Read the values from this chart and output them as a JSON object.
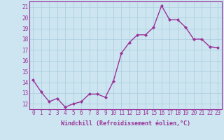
{
  "x": [
    0,
    1,
    2,
    3,
    4,
    5,
    6,
    7,
    8,
    9,
    10,
    11,
    12,
    13,
    14,
    15,
    16,
    17,
    18,
    19,
    20,
    21,
    22,
    23
  ],
  "y": [
    14.2,
    13.1,
    12.2,
    12.5,
    11.7,
    12.0,
    12.2,
    12.9,
    12.9,
    12.6,
    14.1,
    16.7,
    17.7,
    18.4,
    18.4,
    19.1,
    21.1,
    19.8,
    19.8,
    19.1,
    18.0,
    18.0,
    17.3,
    17.2
  ],
  "line_color": "#993399",
  "marker": "D",
  "marker_size": 2,
  "bg_color": "#cce5f0",
  "grid_color": "#aaccdd",
  "xlabel": "Windchill (Refroidissement éolien,°C)",
  "ylim": [
    11.5,
    21.5
  ],
  "xlim": [
    -0.5,
    23.5
  ],
  "yticks": [
    12,
    13,
    14,
    15,
    16,
    17,
    18,
    19,
    20,
    21
  ],
  "xticks": [
    0,
    1,
    2,
    3,
    4,
    5,
    6,
    7,
    8,
    9,
    10,
    11,
    12,
    13,
    14,
    15,
    16,
    17,
    18,
    19,
    20,
    21,
    22,
    23
  ],
  "tick_color": "#993399",
  "label_fontsize": 6,
  "tick_fontsize": 5.5,
  "line_width": 1.0
}
